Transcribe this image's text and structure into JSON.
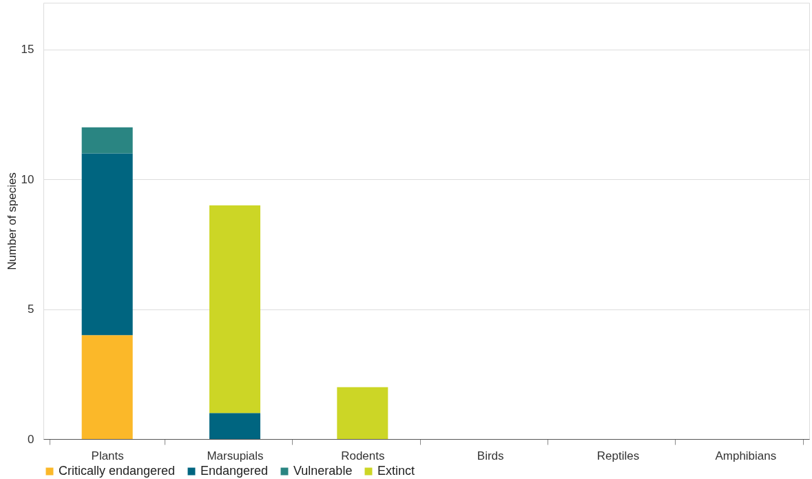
{
  "chart_data": {
    "type": "bar",
    "stacked": true,
    "ylabel": "Number of species",
    "categories": [
      "Plants",
      "Marsupials",
      "Rodents",
      "Birds",
      "Reptiles",
      "Amphibians"
    ],
    "series": [
      {
        "name": "Critically endangered",
        "color": "#fbb829",
        "values": [
          4,
          0,
          0,
          0,
          0,
          0
        ]
      },
      {
        "name": "Endangered",
        "color": "#006580",
        "values": [
          7,
          1,
          0,
          0,
          0,
          0
        ]
      },
      {
        "name": "Vulnerable",
        "color": "#2a8582",
        "values": [
          1,
          0,
          0,
          0,
          0,
          0
        ]
      },
      {
        "name": "Extinct",
        "color": "#ccd626",
        "values": [
          0,
          8,
          2,
          0,
          0,
          0
        ]
      }
    ],
    "ylim": [
      0,
      16.8
    ],
    "yticks": [
      0,
      5,
      10,
      15
    ],
    "grid": "y",
    "legend": "bottom"
  }
}
